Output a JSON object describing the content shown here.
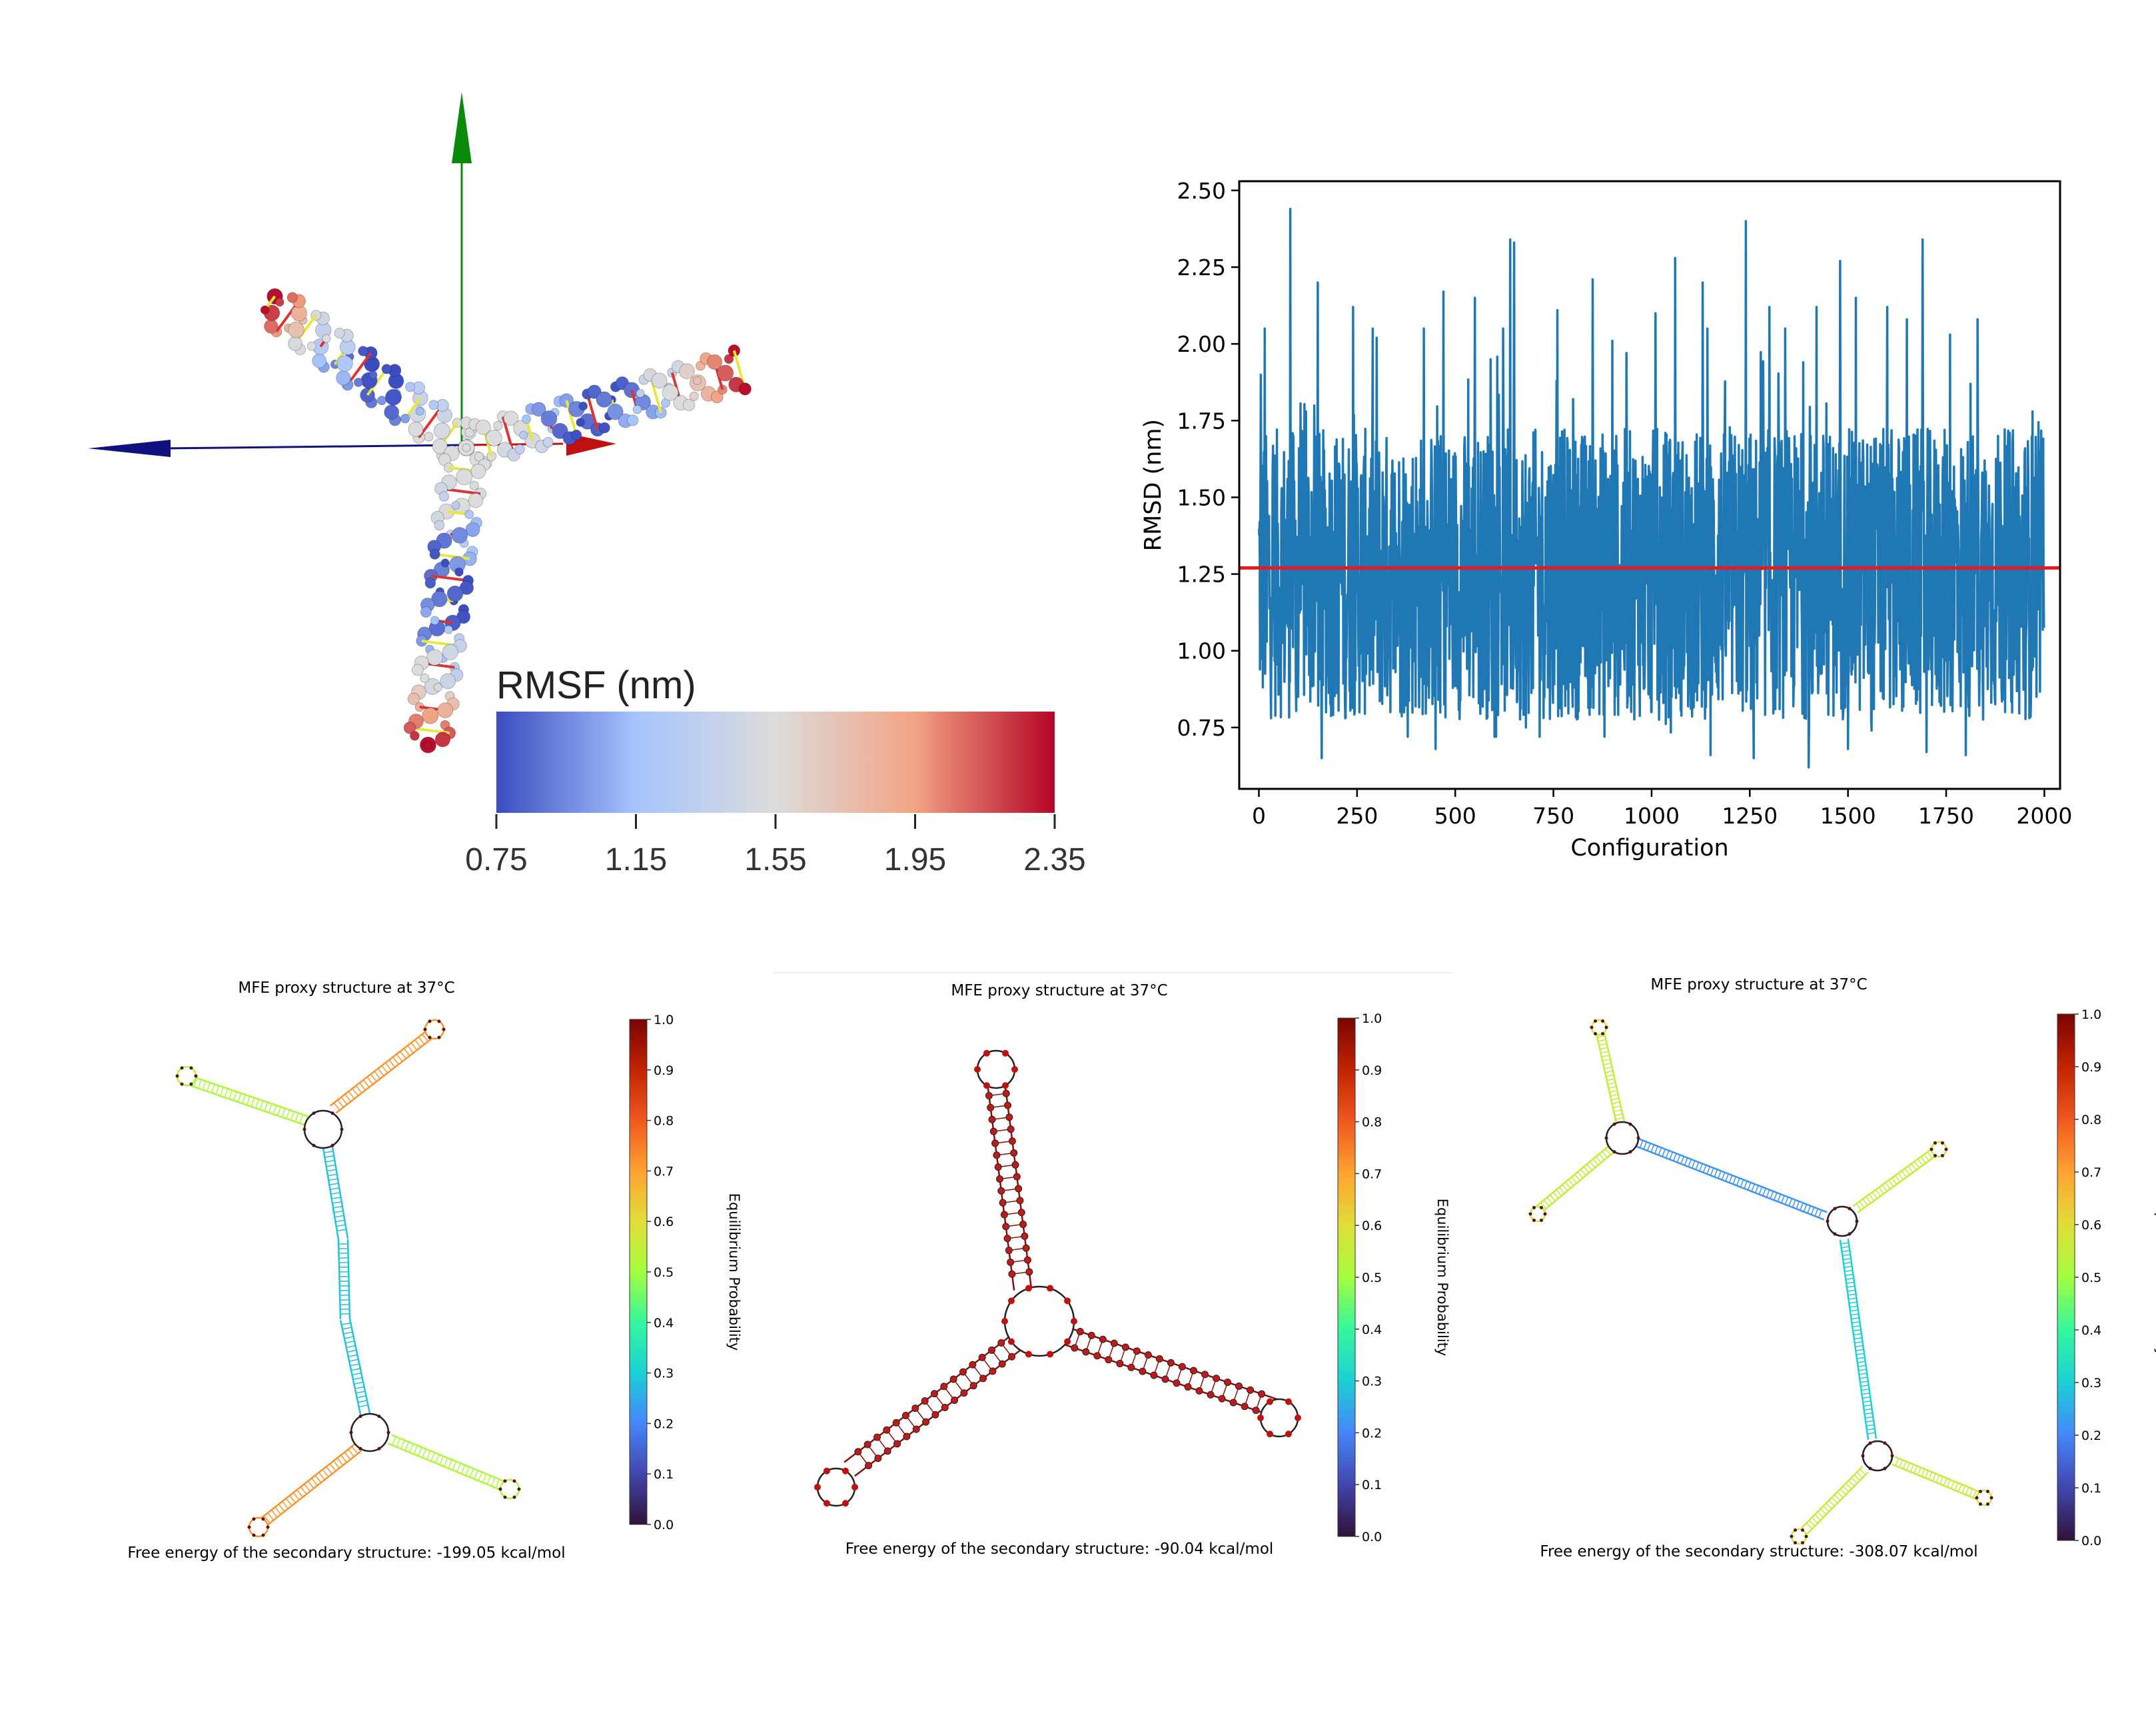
{
  "rmsf_panel": {
    "colorbar_label": "RMSF (nm)",
    "ticks": [
      "0.75",
      "1.15",
      "1.55",
      "1.95",
      "2.35"
    ],
    "colormap_stops": [
      "#3b4cc0",
      "#a6c4fd",
      "#dcdcdc",
      "#f2a384",
      "#b40426"
    ],
    "axis_colors": {
      "y": "#0a8a0a",
      "x": "#c01010",
      "z": "#101080"
    }
  },
  "chart_data": {
    "type": "line",
    "xlabel": "Configuration",
    "ylabel": "RMSD (nm)",
    "xlim": [
      -50,
      2040
    ],
    "ylim": [
      0.55,
      2.53
    ],
    "x_ticks": [
      "0",
      "250",
      "500",
      "750",
      "1000",
      "1250",
      "1500",
      "1750",
      "2000"
    ],
    "y_ticks": [
      "0.75",
      "1.00",
      "1.25",
      "1.50",
      "1.75",
      "2.00",
      "2.25",
      "2.50"
    ],
    "n_points": 2000,
    "mean_line": 1.27,
    "series_color": "#1f77b4",
    "mean_color": "#e8181c",
    "peaks": [
      [
        5,
        1.9
      ],
      [
        15,
        2.05
      ],
      [
        80,
        2.44
      ],
      [
        120,
        1.78
      ],
      [
        150,
        2.2
      ],
      [
        240,
        2.12
      ],
      [
        300,
        2.02
      ],
      [
        420,
        2.05
      ],
      [
        470,
        2.17
      ],
      [
        550,
        2.15
      ],
      [
        590,
        1.95
      ],
      [
        640,
        2.34
      ],
      [
        650,
        2.33
      ],
      [
        760,
        2.11
      ],
      [
        800,
        1.82
      ],
      [
        850,
        2.21
      ],
      [
        900,
        2.01
      ],
      [
        1010,
        2.1
      ],
      [
        1060,
        2.28
      ],
      [
        1130,
        2.2
      ],
      [
        1240,
        2.4
      ],
      [
        1300,
        2.12
      ],
      [
        1340,
        2.05
      ],
      [
        1420,
        2.12
      ],
      [
        1480,
        2.27
      ],
      [
        1520,
        2.15
      ],
      [
        1600,
        2.12
      ],
      [
        1650,
        2.08
      ],
      [
        1690,
        2.34
      ],
      [
        1760,
        2.03
      ],
      [
        1830,
        2.08
      ],
      [
        1900,
        2.05
      ],
      [
        1970,
        1.78
      ]
    ],
    "troughs": [
      [
        20,
        1.03
      ],
      [
        100,
        0.85
      ],
      [
        160,
        0.65
      ],
      [
        220,
        0.78
      ],
      [
        360,
        0.8
      ],
      [
        450,
        0.68
      ],
      [
        600,
        0.72
      ],
      [
        680,
        0.75
      ],
      [
        780,
        0.82
      ],
      [
        880,
        0.72
      ],
      [
        1000,
        0.8
      ],
      [
        1150,
        0.66
      ],
      [
        1260,
        0.65
      ],
      [
        1400,
        0.62
      ],
      [
        1500,
        0.68
      ],
      [
        1560,
        0.74
      ],
      [
        1700,
        0.67
      ],
      [
        1800,
        0.66
      ],
      [
        1900,
        0.8
      ],
      [
        1980,
        0.85
      ]
    ]
  },
  "mfe_panels": [
    {
      "title": "MFE proxy structure at 37°C",
      "free_energy_text": "Free energy of the secondary structure: -199.05 kcal/mol",
      "colorbar_label": "Equilibrium Probability",
      "colorbar_ticks": [
        "0.0",
        "0.1",
        "0.2",
        "0.3",
        "0.4",
        "0.5",
        "0.6",
        "0.7",
        "0.8",
        "0.9",
        "1.0"
      ]
    },
    {
      "title": "MFE proxy structure at 37°C",
      "free_energy_text": "Free energy of the secondary structure: -90.04 kcal/mol",
      "colorbar_label": "Equilibrium Probability",
      "colorbar_ticks": [
        "0.0",
        "0.1",
        "0.2",
        "0.3",
        "0.4",
        "0.5",
        "0.6",
        "0.7",
        "0.8",
        "0.9",
        "1.0"
      ]
    },
    {
      "title": "MFE proxy structure at 37°C",
      "free_energy_text": "Free energy of the secondary structure: -308.07 kcal/mol",
      "colorbar_label": "Equilibrium Probability",
      "colorbar_ticks": [
        "0.0",
        "0.1",
        "0.2",
        "0.3",
        "0.4",
        "0.5",
        "0.6",
        "0.7",
        "0.8",
        "0.9",
        "1.0"
      ]
    }
  ],
  "probability_colormap": [
    "#30123b",
    "#4146ac",
    "#4686fb",
    "#1bd0d5",
    "#35f79d",
    "#a3fd3d",
    "#e1dd37",
    "#fea331",
    "#f0581e",
    "#c22402",
    "#7a0403"
  ]
}
